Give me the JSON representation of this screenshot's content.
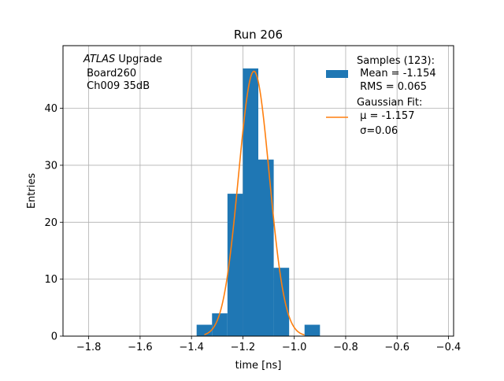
{
  "chart_data": {
    "type": "histogram",
    "title": "Run 206",
    "xlabel": "time [ns]",
    "ylabel": "Entries",
    "xlim": [
      -1.9,
      -0.38
    ],
    "ylim": [
      0,
      51
    ],
    "grid": true,
    "xticks": [
      -1.8,
      -1.6,
      -1.4,
      -1.2,
      -1.0,
      -0.8,
      -0.6,
      -0.4
    ],
    "xtick_labels": [
      "−1.8",
      "−1.6",
      "−1.4",
      "−1.2",
      "−1.0",
      "−0.8",
      "−0.6",
      "−0.4"
    ],
    "yticks": [
      0,
      10,
      20,
      30,
      40
    ],
    "ytick_labels": [
      "0",
      "10",
      "20",
      "30",
      "40"
    ],
    "bins": [
      {
        "x0": -1.38,
        "x1": -1.32,
        "count": 2
      },
      {
        "x0": -1.32,
        "x1": -1.26,
        "count": 4
      },
      {
        "x0": -1.26,
        "x1": -1.2,
        "count": 25
      },
      {
        "x0": -1.2,
        "x1": -1.14,
        "count": 47
      },
      {
        "x0": -1.14,
        "x1": -1.08,
        "count": 31
      },
      {
        "x0": -1.08,
        "x1": -1.02,
        "count": 12
      },
      {
        "x0": -1.02,
        "x1": -0.96,
        "count": 0
      },
      {
        "x0": -0.96,
        "x1": -0.9,
        "count": 2
      }
    ],
    "fit": {
      "type": "gaussian",
      "mu": -1.157,
      "sigma": 0.06,
      "amplitude": 46.5,
      "x_range": [
        -1.35,
        -0.96
      ]
    },
    "colors": {
      "histogram": "#1f77b4",
      "fit": "#ff7f0e",
      "grid": "#b0b0b0"
    },
    "legend": {
      "position": "top-right",
      "hist_lines": [
        "Samples (123):",
        " Mean = -1.154",
        " RMS = 0.065"
      ],
      "fit_lines": [
        "Gaussian Fit:",
        " μ = -1.157",
        " σ=0.06"
      ]
    },
    "annotation": {
      "italic": "ATLAS",
      "rest": " Upgrade",
      "lines": [
        " Board260",
        " Ch009 35dB"
      ]
    }
  }
}
